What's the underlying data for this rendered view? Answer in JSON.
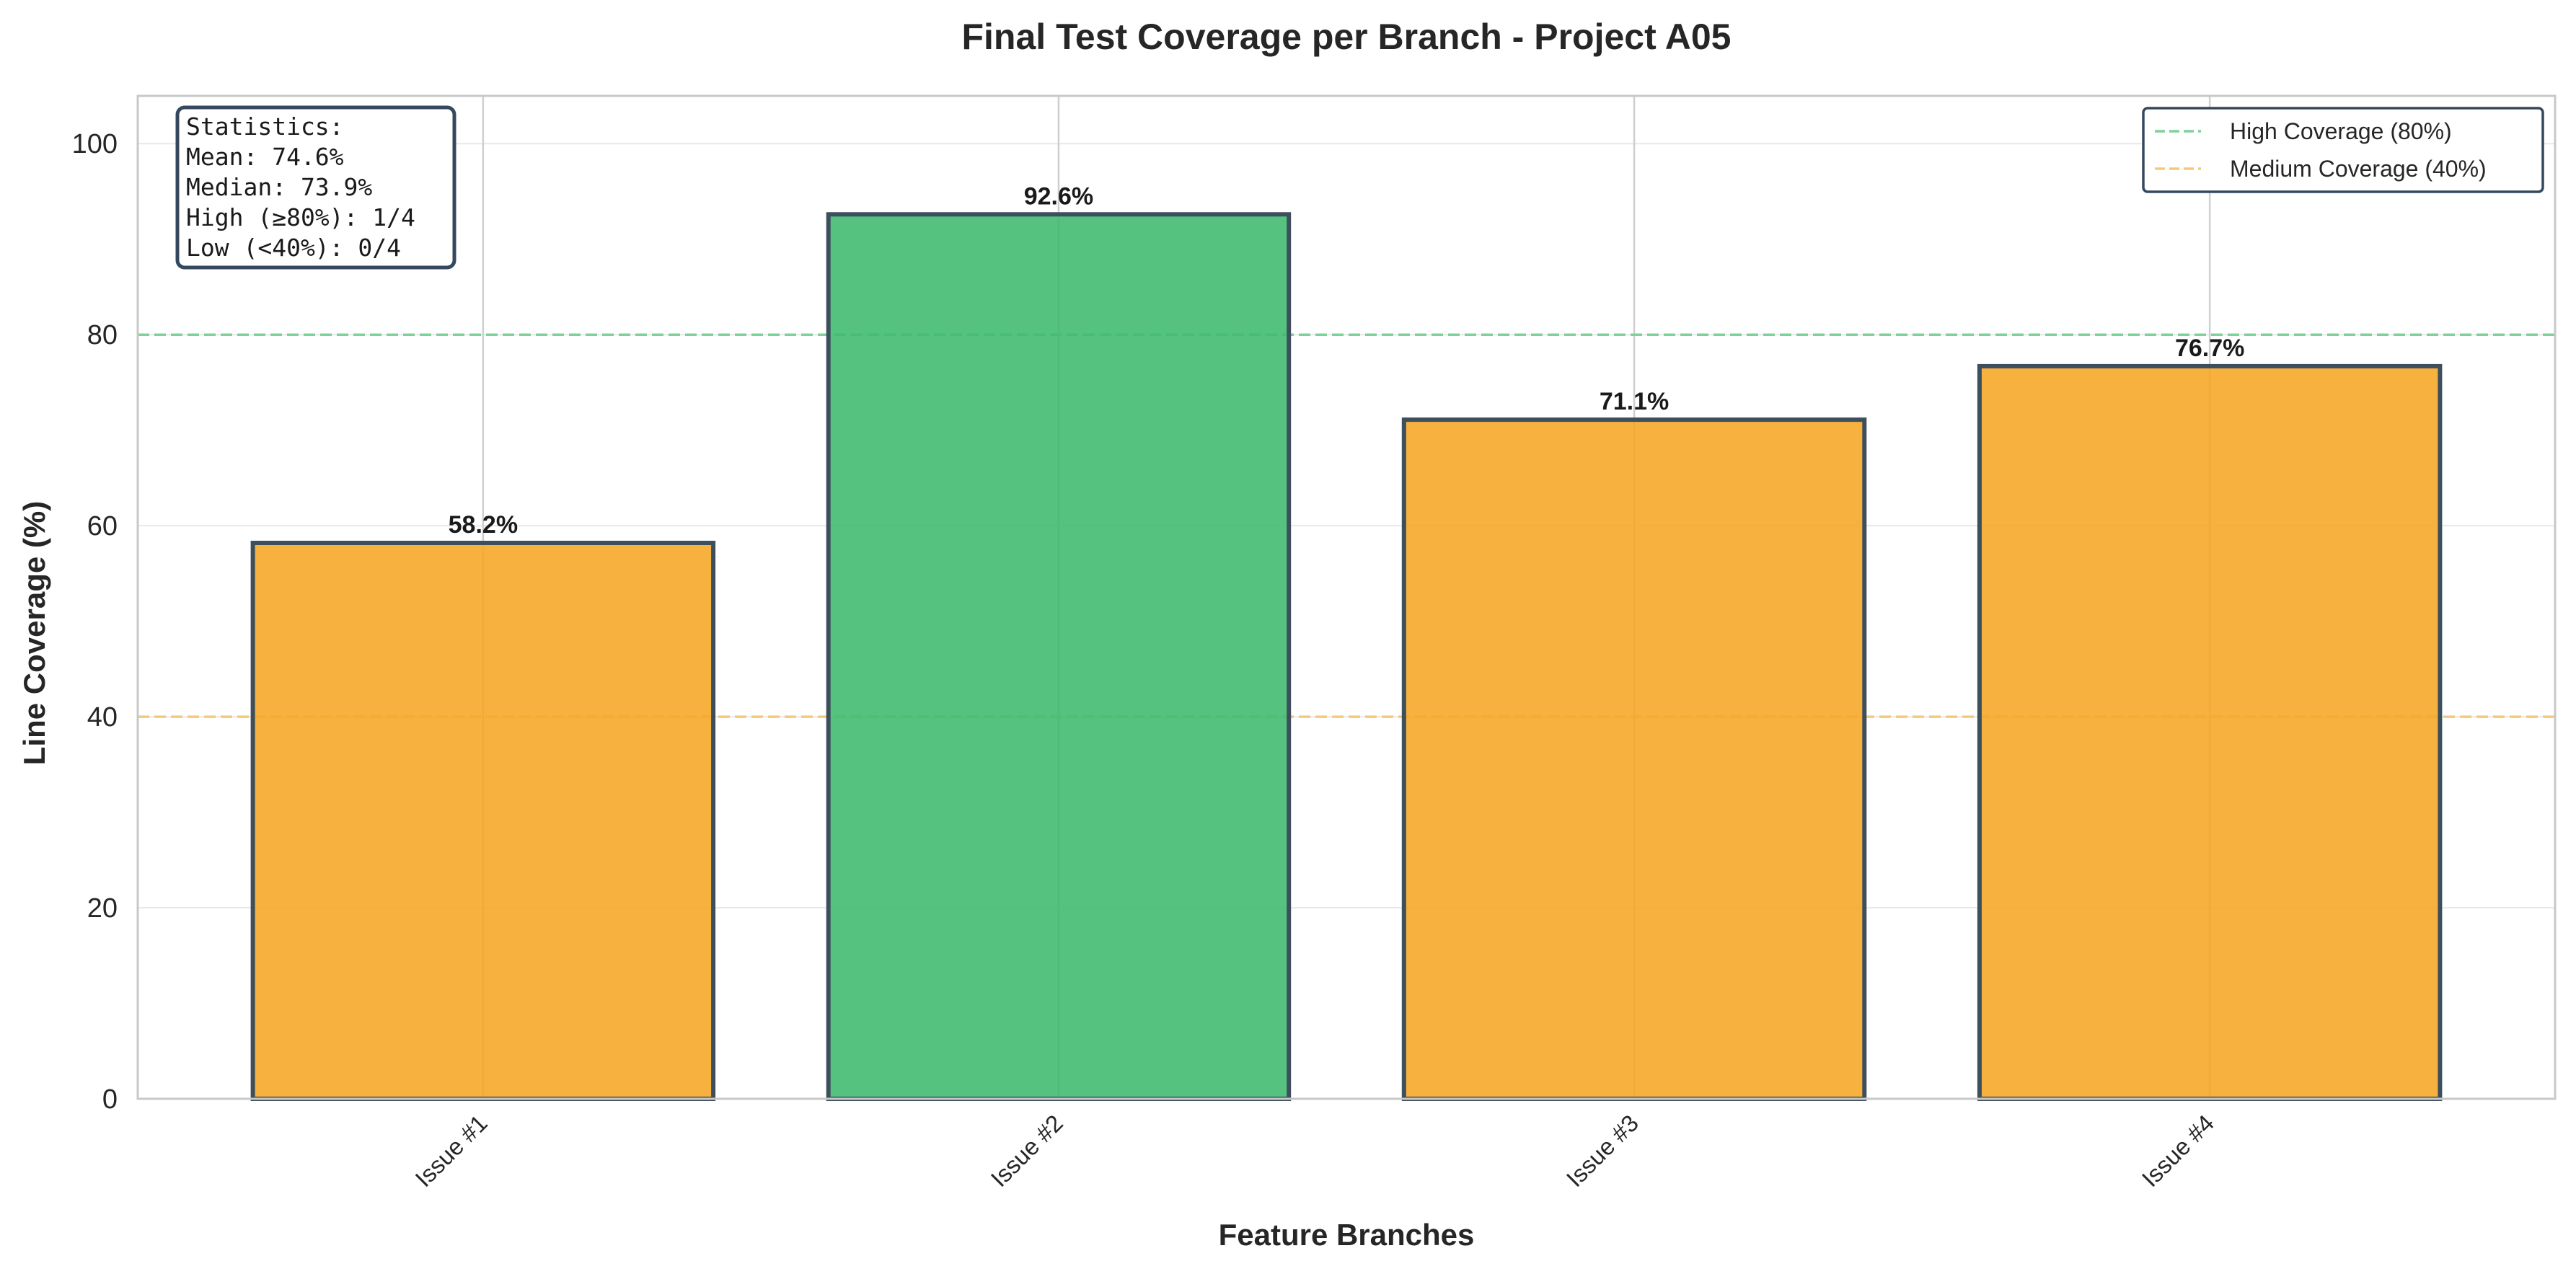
{
  "chart_data": {
    "type": "bar",
    "title": "Final Test Coverage per Branch - Project A05",
    "xlabel": "Feature Branches",
    "ylabel": "Line Coverage (%)",
    "ylim": [
      0,
      105
    ],
    "yticks": [
      0,
      20,
      40,
      60,
      80,
      100
    ],
    "ytick_labels": [
      "0",
      "20",
      "40",
      "60",
      "80",
      "100"
    ],
    "categories": [
      "Issue #1",
      "Issue #2",
      "Issue #3",
      "Issue #4"
    ],
    "values": [
      58.2,
      92.6,
      71.1,
      76.7
    ],
    "value_labels": [
      "58.2%",
      "92.6%",
      "71.1%",
      "76.7%"
    ],
    "bar_colors": [
      "#f5a623",
      "#3dba6e",
      "#f5a623",
      "#f5a623"
    ],
    "bar_edge_color": "#3d4f5c",
    "grid": true,
    "thresholds": [
      {
        "label": "High Coverage (80%)",
        "value": 80,
        "color": "#7fd19a"
      },
      {
        "label": "Medium Coverage (40%)",
        "value": 40,
        "color": "#f5c978"
      }
    ],
    "legend_position": "top-right",
    "stats_box": {
      "position": "top-left",
      "lines": [
        "Statistics:",
        "Mean: 74.6%",
        "Median: 73.9%",
        "High (≥80%): 1/4",
        "Low (<40%): 0/4"
      ]
    }
  }
}
